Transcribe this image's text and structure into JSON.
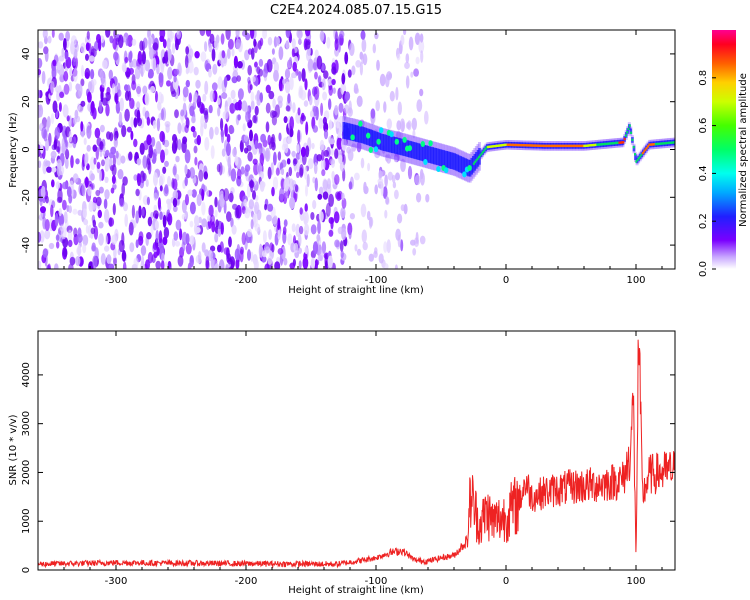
{
  "chart_data": [
    {
      "type": "heatmap",
      "title": "C2E4.2024.085.07.15.G15",
      "xlabel": "Height of straight line (km)",
      "ylabel": "Frequency (Hz)",
      "xlim": [
        -360,
        130
      ],
      "ylim": [
        -50,
        50
      ],
      "xticks": [
        -300,
        -200,
        -100,
        0,
        100
      ],
      "yticks": [
        -40,
        -20,
        0,
        20,
        40
      ],
      "colorbar": {
        "label": "Normalized spectral amplitude",
        "range": [
          0,
          1
        ],
        "ticks": [
          "0.0",
          "0.2",
          "0.4",
          "0.6",
          "0.8"
        ]
      },
      "signal_trace": [
        {
          "x": -125,
          "y": 8
        },
        {
          "x": -110,
          "y": 6
        },
        {
          "x": -95,
          "y": 3
        },
        {
          "x": -80,
          "y": 1
        },
        {
          "x": -60,
          "y": -2
        },
        {
          "x": -40,
          "y": -5
        },
        {
          "x": -28,
          "y": -8
        },
        {
          "x": -15,
          "y": 1
        },
        {
          "x": 0,
          "y": 2
        },
        {
          "x": 30,
          "y": 1.5
        },
        {
          "x": 60,
          "y": 1.5
        },
        {
          "x": 90,
          "y": 3
        },
        {
          "x": 95,
          "y": 10
        },
        {
          "x": 100,
          "y": -5
        },
        {
          "x": 110,
          "y": 2
        },
        {
          "x": 130,
          "y": 3
        }
      ]
    },
    {
      "type": "line",
      "xlabel": "Height of straight line (km)",
      "ylabel": "SNR (10 * v/v)",
      "xlim": [
        -360,
        130
      ],
      "ylim": [
        0,
        4900
      ],
      "xticks": [
        -300,
        -200,
        -100,
        0,
        100
      ],
      "yticks": [
        0,
        1000,
        2000,
        3000,
        4000
      ],
      "color": "#ee2222",
      "series": [
        {
          "x": [
            -360,
            -300,
            -200,
            -130,
            -115,
            -100,
            -90,
            -80,
            -70,
            -60,
            -50,
            -40,
            -30,
            -27,
            -25,
            -20,
            -15,
            -10,
            0,
            10,
            15,
            20,
            30,
            50,
            70,
            90,
            95,
            98,
            100,
            102,
            105,
            110,
            120,
            130
          ],
          "values": [
            120,
            150,
            130,
            120,
            180,
            250,
            350,
            400,
            200,
            180,
            250,
            300,
            600,
            1600,
            1300,
            900,
            1200,
            1000,
            1100,
            1400,
            1800,
            1500,
            1600,
            1700,
            1750,
            1850,
            2300,
            3400,
            200,
            4800,
            1500,
            1950,
            2000,
            2050
          ]
        }
      ]
    }
  ]
}
